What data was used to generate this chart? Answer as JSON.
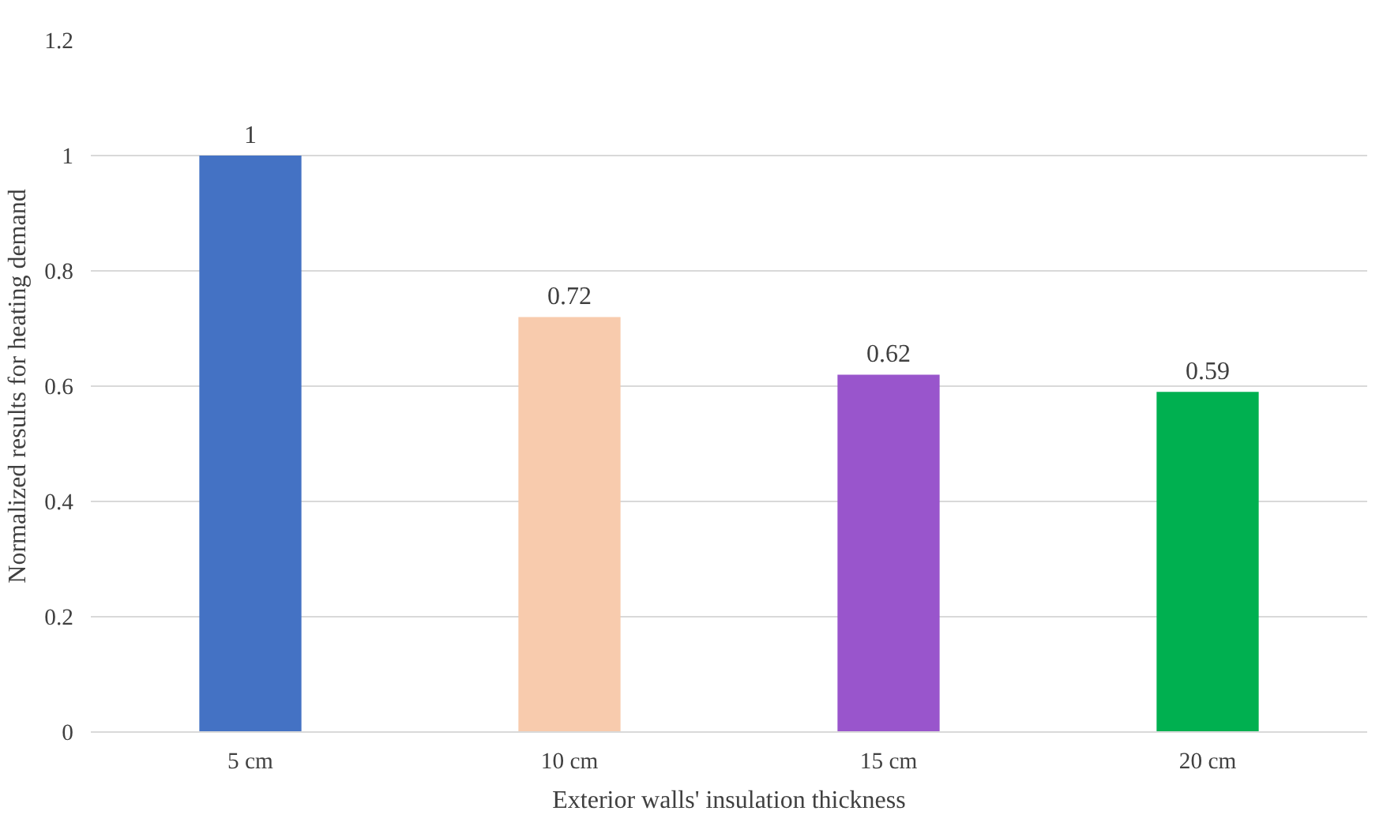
{
  "chart_data": {
    "type": "bar",
    "xlabel": "Exterior walls' insulation thickness",
    "ylabel": "Normalized results for heating demand",
    "categories": [
      "5 cm",
      "10 cm",
      "15 cm",
      "20 cm"
    ],
    "values": [
      1,
      0.72,
      0.62,
      0.59
    ],
    "colors": [
      "#4472c4",
      "#f8cbad",
      "#9955cc",
      "#00b050"
    ],
    "ylim": [
      0,
      1.2
    ],
    "yticks": [
      0,
      0.2,
      0.4,
      0.6,
      0.8,
      1,
      1.2
    ],
    "grid": "y",
    "data_labels": true
  }
}
